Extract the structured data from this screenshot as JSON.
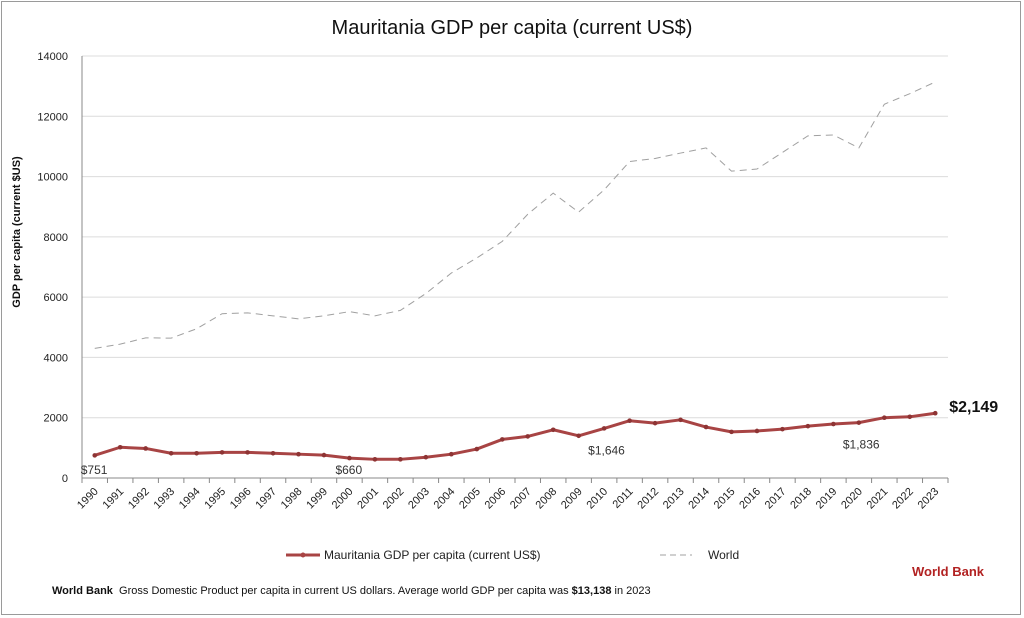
{
  "chart_data": {
    "type": "line",
    "title": "Mauritania GDP per capita (current US$)",
    "ylabel": "GDP per capita (current $US)",
    "xlabel": "",
    "ylim": [
      0,
      14000
    ],
    "yticks": [
      0,
      2000,
      4000,
      6000,
      8000,
      10000,
      12000,
      14000
    ],
    "grid": "horizontal",
    "legend_placement": "bottom",
    "categories": [
      "1990",
      "1991",
      "1992",
      "1993",
      "1994",
      "1995",
      "1996",
      "1997",
      "1998",
      "1999",
      "2000",
      "2001",
      "2002",
      "2003",
      "2004",
      "2005",
      "2006",
      "2007",
      "2008",
      "2009",
      "2010",
      "2011",
      "2012",
      "2013",
      "2014",
      "2015",
      "2016",
      "2017",
      "2018",
      "2019",
      "2020",
      "2021",
      "2022",
      "2023"
    ],
    "series": [
      {
        "name": "Mauritania GDP per capita (current US$)",
        "color": "#a84444",
        "style": "solid-markers",
        "values": [
          751,
          1020,
          980,
          820,
          820,
          850,
          850,
          820,
          790,
          760,
          660,
          620,
          620,
          690,
          790,
          960,
          1280,
          1380,
          1600,
          1400,
          1646,
          1900,
          1820,
          1930,
          1690,
          1530,
          1560,
          1620,
          1720,
          1790,
          1836,
          2000,
          2030,
          2149
        ]
      },
      {
        "name": "World",
        "color": "#a0a0a0",
        "style": "dashed",
        "values": [
          4300,
          4440,
          4650,
          4640,
          4950,
          5450,
          5480,
          5380,
          5280,
          5380,
          5520,
          5380,
          5560,
          6120,
          6800,
          7300,
          7850,
          8750,
          9450,
          8820,
          9560,
          10500,
          10600,
          10780,
          10950,
          10180,
          10250,
          10800,
          11350,
          11380,
          10950,
          12400,
          12750,
          13138
        ]
      }
    ],
    "annotations": [
      {
        "year": "1990",
        "text": "$751"
      },
      {
        "year": "2000",
        "text": "$660"
      },
      {
        "year": "2010",
        "text": "$1,646"
      },
      {
        "year": "2020",
        "text": "$1,836"
      },
      {
        "year": "2023",
        "text": "$2,149",
        "emphasis": true
      }
    ]
  },
  "brand": "World Bank",
  "footer": {
    "source": "World Bank",
    "text": "Gross Domestic Product per capita in current US dollars.  Average world GDP per capita was ",
    "value": "$13,138",
    "suffix": " in 2023"
  }
}
